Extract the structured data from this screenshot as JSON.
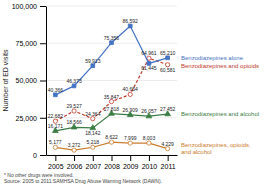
{
  "chart_data": {
    "type": "line",
    "x": [
      2005,
      2006,
      2007,
      2008,
      2009,
      2010,
      2011
    ],
    "xlim": [
      2004.5,
      2011.5
    ],
    "xticks": [
      2005,
      2006,
      2007,
      2008,
      2009,
      2010,
      2011
    ],
    "ylim": [
      0,
      100000
    ],
    "yticks": [
      0,
      {
        "value": 25000,
        "label": "25,000"
      },
      {
        "value": 50000,
        "label": "50,000"
      },
      {
        "value": 75000,
        "label": "75,000"
      },
      {
        "value": 100000,
        "label": "100,000"
      }
    ],
    "ylabel": "Number of ED visits",
    "grid": true,
    "legend": "right",
    "data_labels": true,
    "footnote": "* No other drugs were involved.\nSource: 2005 to 2011 SAMHSA Drug Abuse Warning Network (DAWN).",
    "series": [
      {
        "name": "Benzodiazepines alone",
        "color": "#4472c4",
        "marker": "square",
        "line_style": "solid",
        "values": [
          40366,
          46373,
          59913,
          75356,
          86592,
          61445,
          65210
        ],
        "value_labels": [
          "40,366",
          "46,373",
          "59,913",
          "75,356",
          "86,592",
          "61,445",
          "65,210"
        ]
      },
      {
        "name": "Benzodiazepines and opioids",
        "color": "#c0392b",
        "marker": "circle-open",
        "line_style": "dashed",
        "values": [
          22682,
          29527,
          24364,
          35847,
          40654,
          64961,
          60581
        ],
        "value_labels": [
          "22,682",
          "29,527",
          "24,364",
          "35,847",
          "40,654",
          "64,961",
          "60,581"
        ]
      },
      {
        "name": "Benzodiazepines and alcohol",
        "color": "#3a7d44",
        "marker": "triangle",
        "line_style": "solid",
        "values": [
          16171,
          18566,
          18142,
          27818,
          26909,
          26057,
          27452
        ],
        "value_labels": [
          "16,171",
          "18,566",
          "18,142",
          "27,818",
          "26,909",
          "26,057",
          "27,452"
        ]
      },
      {
        "name": "Benzodiazepines, opioids,\nand alcohol",
        "color": "#c97c2e",
        "marker": "circle-open",
        "line_style": "solid",
        "values": [
          5177,
          3272,
          5218,
          8622,
          7999,
          8003,
          4229
        ],
        "value_labels": [
          "5,177",
          "3,272",
          "5,218",
          "8,622",
          "7,999",
          "8,003",
          "4,229"
        ]
      }
    ]
  }
}
